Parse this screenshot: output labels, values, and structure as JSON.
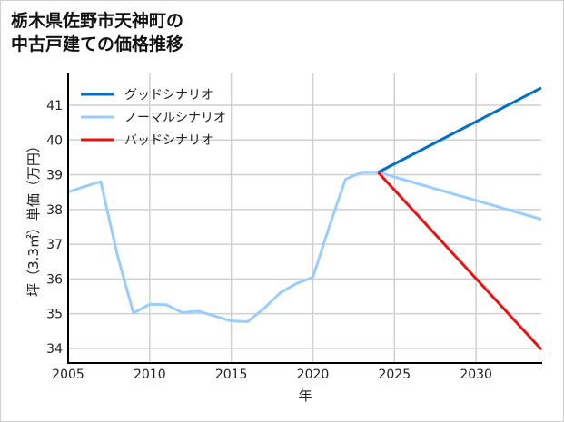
{
  "chart_data": {
    "type": "line",
    "title_lines": [
      "栃木県佐野市天神町の",
      "中古戸建ての価格推移"
    ],
    "xlabel": "年",
    "ylabel": "坪（3.3㎡）単価（万円）",
    "xlim": [
      2005,
      2034
    ],
    "ylim": [
      33.58,
      41.94
    ],
    "xticks": [
      2005,
      2010,
      2015,
      2020,
      2025,
      2030
    ],
    "yticks": [
      34,
      35,
      36,
      37,
      38,
      39,
      40,
      41
    ],
    "grid": true,
    "legend_position": "top-left",
    "series": [
      {
        "name": "グッドシナリオ",
        "color": "#0070c8",
        "x": [
          2024,
          2034
        ],
        "y": [
          39.07,
          41.5
        ]
      },
      {
        "name": "ノーマルシナリオ",
        "color": "#99ccff",
        "x": [
          2005,
          2006,
          2007,
          2008,
          2009,
          2010,
          2011,
          2012,
          2013,
          2014,
          2015,
          2016,
          2017,
          2018,
          2019,
          2020,
          2021,
          2022,
          2023,
          2024,
          2034
        ],
        "y": [
          38.5,
          38.66,
          38.8,
          36.72,
          35.02,
          35.27,
          35.26,
          35.03,
          35.07,
          34.93,
          34.79,
          34.77,
          35.15,
          35.6,
          35.87,
          36.05,
          37.5,
          38.87,
          39.07,
          39.07,
          37.72
        ]
      },
      {
        "name": "バッドシナリオ",
        "color": "#ee1111",
        "x": [
          2024,
          2034
        ],
        "y": [
          39.07,
          33.97
        ]
      }
    ]
  }
}
